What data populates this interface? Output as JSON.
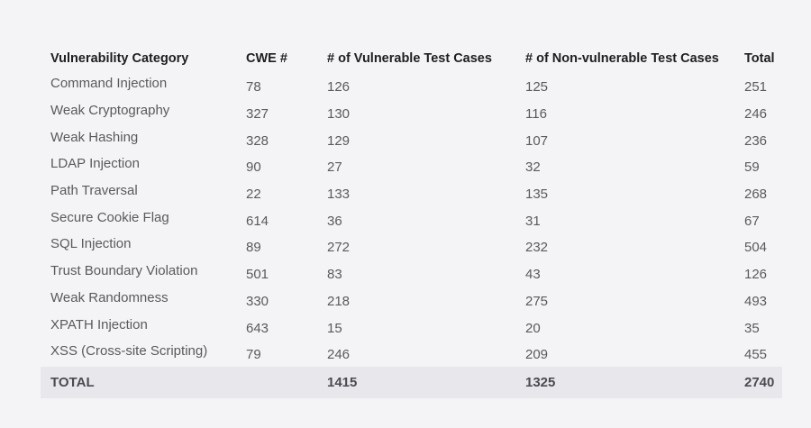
{
  "table": {
    "headers": [
      "Vulnerability Category",
      "CWE #",
      "# of Vulnerable Test Cases",
      "# of Non-vulnerable Test Cases",
      "Total"
    ],
    "rows": [
      [
        "Command Injection",
        "78",
        "126",
        "125",
        "251"
      ],
      [
        "Weak Cryptography",
        "327",
        "130",
        "116",
        "246"
      ],
      [
        "Weak Hashing",
        "328",
        "129",
        "107",
        "236"
      ],
      [
        "LDAP Injection",
        "90",
        "27",
        "32",
        "59"
      ],
      [
        "Path Traversal",
        "22",
        "133",
        "135",
        "268"
      ],
      [
        "Secure Cookie Flag",
        "614",
        "36",
        "31",
        "67"
      ],
      [
        "SQL Injection",
        "89",
        "272",
        "232",
        "504"
      ],
      [
        "Trust Boundary Violation",
        "501",
        "83",
        "43",
        "126"
      ],
      [
        "Weak Randomness",
        "330",
        "218",
        "275",
        "493"
      ],
      [
        "XPATH Injection",
        "643",
        "15",
        "20",
        "35"
      ],
      [
        "XSS (Cross-site Scripting)",
        "79",
        "246",
        "209",
        "455"
      ]
    ],
    "total": {
      "label": "TOTAL",
      "cwe": "",
      "vulnerable": "1415",
      "non_vulnerable": "1325",
      "total": "2740"
    }
  }
}
